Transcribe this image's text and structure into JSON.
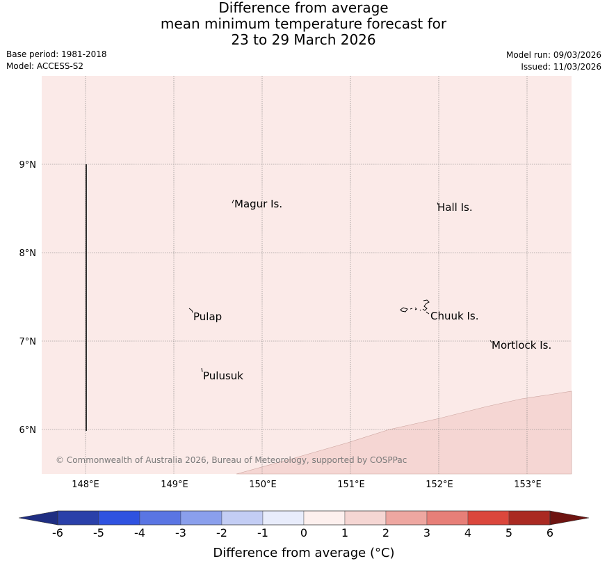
{
  "title": {
    "line1": "Difference from average",
    "line2": "mean minimum temperature forecast for",
    "line3": "23 to 29 March 2026"
  },
  "meta_left": {
    "base_period": "Base period: 1981-2018",
    "model": "Model: ACCESS-S2"
  },
  "meta_right": {
    "model_run": "Model run: 09/03/2026",
    "issued": "Issued: 11/03/2026"
  },
  "map": {
    "lon_ticks": [
      "148°E",
      "149°E",
      "150°E",
      "151°E",
      "152°E",
      "153°E"
    ],
    "lat_ticks": [
      "9°N",
      "8°N",
      "7°N",
      "6°N"
    ],
    "extent": {
      "lon_min": 147.5,
      "lon_max": 153.5,
      "lat_min": 5.5,
      "lat_max": 10.0
    },
    "places": [
      {
        "name": "Magur Is.",
        "lon": 149.67,
        "lat": 8.57
      },
      {
        "name": "Hall Is.",
        "lon": 151.98,
        "lat": 8.55
      },
      {
        "name": "Pulap",
        "lon": 149.2,
        "lat": 7.33
      },
      {
        "name": "Chuuk Is.",
        "lon": 151.85,
        "lat": 7.35
      },
      {
        "name": "Mortlock Is.",
        "lon": 152.58,
        "lat": 6.98
      },
      {
        "name": "Pulusuk",
        "lon": 149.3,
        "lat": 6.68
      }
    ],
    "background_category": "0 to 1",
    "background_color": "#fbeae8",
    "warmer_region_category": "1 to 2",
    "warmer_region_color": "#f5d6d3",
    "copyright": "© Commonwealth of Australia 2026, Bureau of Meteorology, supported by COSPPac"
  },
  "colorbar": {
    "label": "Difference from average ($^\\circ$C)",
    "label_display": "Difference from average (°C)",
    "ticks": [
      "-6",
      "-5",
      "-4",
      "-3",
      "-2",
      "-1",
      "0",
      "1",
      "2",
      "3",
      "4",
      "5",
      "6"
    ],
    "colors": [
      "#2a40a9",
      "#2f52e0",
      "#5a75e3",
      "#8a9fec",
      "#c3cdf4",
      "#e8ecfb",
      "#fdf0ee",
      "#f5d6d3",
      "#eea7a1",
      "#e77f78",
      "#db473c",
      "#aa2a22"
    ],
    "under_color": "#1f2e82",
    "over_color": "#6e1411"
  }
}
